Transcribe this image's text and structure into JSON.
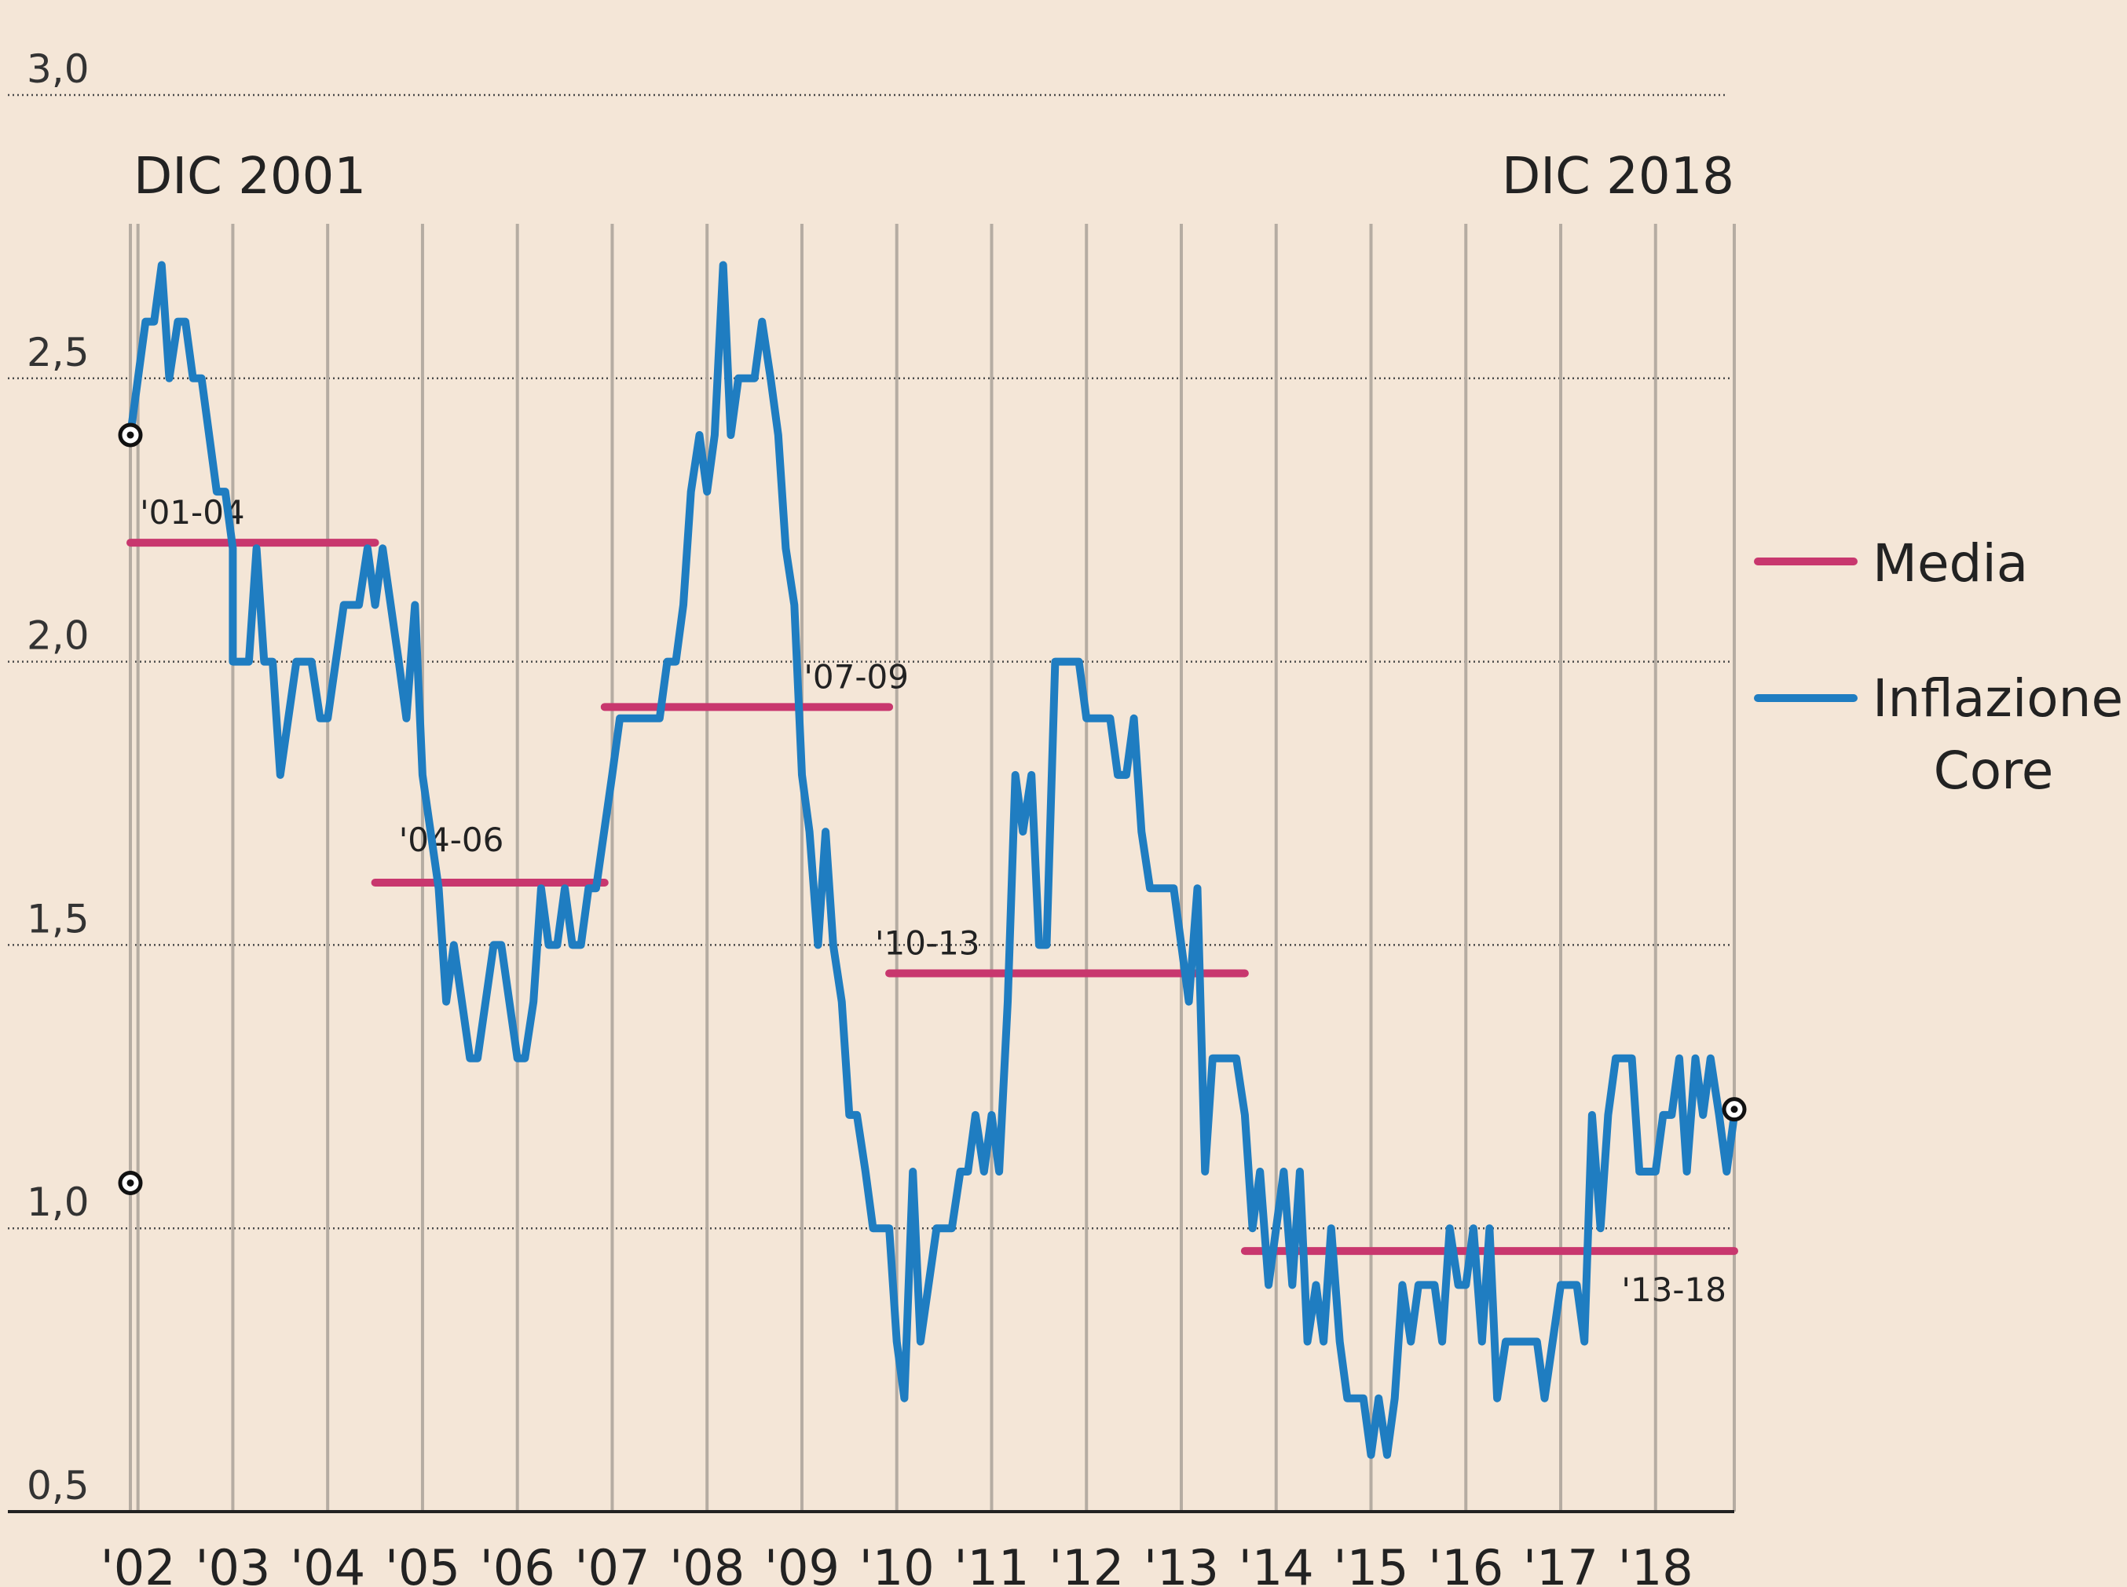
{
  "chart_data": {
    "type": "line",
    "title": "",
    "xlabel": "",
    "ylabel": "",
    "start_label": "DIC 2001",
    "end_label": "DIC 2018",
    "ylim": [
      0.5,
      3.0
    ],
    "ytick_labels": [
      "0,5",
      "1,0",
      "1,5",
      "2,0",
      "2,5",
      "3,0"
    ],
    "yticks": [
      0.5,
      1.0,
      1.5,
      2.0,
      2.5,
      3.0
    ],
    "xtick_labels": [
      "'02",
      "'03",
      "'04",
      "'05",
      "'06",
      "'07",
      "'08",
      "'09",
      "'10",
      "'11",
      "'12",
      "'13",
      "'14",
      "'15",
      "'16",
      "'17",
      "'18"
    ],
    "xticks": [
      2002,
      2003,
      2004,
      2005,
      2006,
      2007,
      2008,
      2009,
      2010,
      2011,
      2012,
      2013,
      2014,
      2015,
      2016,
      2017,
      2018
    ],
    "grid": true,
    "legend_position": "right",
    "series": [
      {
        "name": "Inflazione Core",
        "color": "#1f7dc1",
        "points": [
          [
            2001.92,
            2.4
          ],
          [
            2002.08,
            2.6
          ],
          [
            2002.17,
            2.6
          ],
          [
            2002.25,
            2.7
          ],
          [
            2002.33,
            2.5
          ],
          [
            2002.42,
            2.6
          ],
          [
            2002.5,
            2.6
          ],
          [
            2002.58,
            2.5
          ],
          [
            2002.67,
            2.5
          ],
          [
            2002.83,
            2.3
          ],
          [
            2002.92,
            2.3
          ],
          [
            2003.0,
            2.2
          ],
          [
            2003.0,
            2.0
          ],
          [
            2003.17,
            2.0
          ],
          [
            2003.25,
            2.2
          ],
          [
            2003.33,
            2.0
          ],
          [
            2003.42,
            2.0
          ],
          [
            2003.5,
            1.8
          ],
          [
            2003.67,
            2.0
          ],
          [
            2003.83,
            2.0
          ],
          [
            2003.92,
            1.9
          ],
          [
            2004.0,
            1.9
          ],
          [
            2004.17,
            2.1
          ],
          [
            2004.33,
            2.1
          ],
          [
            2004.42,
            2.2
          ],
          [
            2004.5,
            2.1
          ],
          [
            2004.58,
            2.2
          ],
          [
            2004.75,
            2.0
          ],
          [
            2004.83,
            1.9
          ],
          [
            2004.92,
            2.1
          ],
          [
            2005.0,
            1.8
          ],
          [
            2005.17,
            1.6
          ],
          [
            2005.25,
            1.4
          ],
          [
            2005.33,
            1.5
          ],
          [
            2005.5,
            1.3
          ],
          [
            2005.58,
            1.3
          ],
          [
            2005.75,
            1.5
          ],
          [
            2005.83,
            1.5
          ],
          [
            2006.0,
            1.3
          ],
          [
            2006.08,
            1.3
          ],
          [
            2006.17,
            1.4
          ],
          [
            2006.25,
            1.6
          ],
          [
            2006.33,
            1.5
          ],
          [
            2006.42,
            1.5
          ],
          [
            2006.5,
            1.6
          ],
          [
            2006.58,
            1.5
          ],
          [
            2006.67,
            1.5
          ],
          [
            2006.75,
            1.6
          ],
          [
            2006.83,
            1.6
          ],
          [
            2007.0,
            1.8
          ],
          [
            2007.08,
            1.9
          ],
          [
            2007.25,
            1.9
          ],
          [
            2007.5,
            1.9
          ],
          [
            2007.58,
            2.0
          ],
          [
            2007.67,
            2.0
          ],
          [
            2007.75,
            2.1
          ],
          [
            2007.83,
            2.3
          ],
          [
            2007.92,
            2.4
          ],
          [
            2008.0,
            2.3
          ],
          [
            2008.08,
            2.4
          ],
          [
            2008.17,
            2.7
          ],
          [
            2008.25,
            2.4
          ],
          [
            2008.33,
            2.5
          ],
          [
            2008.5,
            2.5
          ],
          [
            2008.58,
            2.6
          ],
          [
            2008.67,
            2.5
          ],
          [
            2008.75,
            2.4
          ],
          [
            2008.83,
            2.2
          ],
          [
            2008.92,
            2.1
          ],
          [
            2009.0,
            1.8
          ],
          [
            2009.08,
            1.7
          ],
          [
            2009.17,
            1.5
          ],
          [
            2009.25,
            1.7
          ],
          [
            2009.33,
            1.5
          ],
          [
            2009.42,
            1.4
          ],
          [
            2009.5,
            1.2
          ],
          [
            2009.58,
            1.2
          ],
          [
            2009.67,
            1.1
          ],
          [
            2009.75,
            1.0
          ],
          [
            2009.92,
            1.0
          ],
          [
            2010.0,
            0.8
          ],
          [
            2010.08,
            0.7
          ],
          [
            2010.17,
            1.1
          ],
          [
            2010.25,
            0.8
          ],
          [
            2010.42,
            1.0
          ],
          [
            2010.58,
            1.0
          ],
          [
            2010.67,
            1.1
          ],
          [
            2010.75,
            1.1
          ],
          [
            2010.83,
            1.2
          ],
          [
            2010.92,
            1.1
          ],
          [
            2011.0,
            1.2
          ],
          [
            2011.08,
            1.1
          ],
          [
            2011.17,
            1.4
          ],
          [
            2011.25,
            1.8
          ],
          [
            2011.33,
            1.7
          ],
          [
            2011.42,
            1.8
          ],
          [
            2011.5,
            1.5
          ],
          [
            2011.58,
            1.5
          ],
          [
            2011.67,
            2.0
          ],
          [
            2011.92,
            2.0
          ],
          [
            2012.0,
            1.9
          ],
          [
            2012.25,
            1.9
          ],
          [
            2012.33,
            1.8
          ],
          [
            2012.42,
            1.8
          ],
          [
            2012.5,
            1.9
          ],
          [
            2012.58,
            1.7
          ],
          [
            2012.67,
            1.6
          ],
          [
            2012.92,
            1.6
          ],
          [
            2013.0,
            1.5
          ],
          [
            2013.08,
            1.4
          ],
          [
            2013.17,
            1.6
          ],
          [
            2013.25,
            1.1
          ],
          [
            2013.33,
            1.3
          ],
          [
            2013.58,
            1.3
          ],
          [
            2013.67,
            1.2
          ],
          [
            2013.75,
            1.0
          ],
          [
            2013.83,
            1.1
          ],
          [
            2013.92,
            0.9
          ],
          [
            2014.0,
            1.0
          ],
          [
            2014.08,
            1.1
          ],
          [
            2014.17,
            0.9
          ],
          [
            2014.25,
            1.1
          ],
          [
            2014.33,
            0.8
          ],
          [
            2014.42,
            0.9
          ],
          [
            2014.5,
            0.8
          ],
          [
            2014.58,
            1.0
          ],
          [
            2014.67,
            0.8
          ],
          [
            2014.75,
            0.7
          ],
          [
            2014.92,
            0.7
          ],
          [
            2015.0,
            0.6
          ],
          [
            2015.08,
            0.7
          ],
          [
            2015.17,
            0.6
          ],
          [
            2015.25,
            0.7
          ],
          [
            2015.33,
            0.9
          ],
          [
            2015.42,
            0.8
          ],
          [
            2015.5,
            0.9
          ],
          [
            2015.67,
            0.9
          ],
          [
            2015.75,
            0.8
          ],
          [
            2015.83,
            1.0
          ],
          [
            2015.92,
            0.9
          ],
          [
            2016.0,
            0.9
          ],
          [
            2016.08,
            1.0
          ],
          [
            2016.17,
            0.8
          ],
          [
            2016.25,
            1.0
          ],
          [
            2016.33,
            0.7
          ],
          [
            2016.42,
            0.8
          ],
          [
            2016.75,
            0.8
          ],
          [
            2016.83,
            0.7
          ],
          [
            2017.0,
            0.9
          ],
          [
            2017.17,
            0.9
          ],
          [
            2017.25,
            0.8
          ],
          [
            2017.33,
            1.2
          ],
          [
            2017.42,
            1.0
          ],
          [
            2017.5,
            1.2
          ],
          [
            2017.58,
            1.3
          ],
          [
            2017.75,
            1.3
          ],
          [
            2017.83,
            1.1
          ],
          [
            2018.0,
            1.1
          ],
          [
            2018.08,
            1.2
          ],
          [
            2018.17,
            1.2
          ],
          [
            2018.25,
            1.3
          ],
          [
            2018.33,
            1.1
          ],
          [
            2018.42,
            1.3
          ],
          [
            2018.5,
            1.2
          ],
          [
            2018.58,
            1.3
          ],
          [
            2018.67,
            1.2
          ],
          [
            2018.75,
            1.1
          ],
          [
            2018.83,
            1.2
          ]
        ]
      }
    ],
    "averages": {
      "name": "Media",
      "color": "#c8376e",
      "segments": [
        {
          "label": "'01-04",
          "from": 2001.92,
          "to": 2004.5,
          "value": 2.21
        },
        {
          "label": "'04-06",
          "from": 2004.5,
          "to": 2006.92,
          "value": 1.61
        },
        {
          "label": "'07-09",
          "from": 2006.92,
          "to": 2009.92,
          "value": 1.92
        },
        {
          "label": "'10-13",
          "from": 2009.92,
          "to": 2013.67,
          "value": 1.45
        },
        {
          "label": "'13-18",
          "from": 2013.67,
          "to": 2018.83,
          "value": 0.96
        }
      ]
    },
    "reference_points": [
      {
        "x": 2001.92,
        "y": 2.4
      },
      {
        "x": 2001.92,
        "y": 1.08
      },
      {
        "x": 2018.83,
        "y": 1.21
      }
    ]
  },
  "legend": {
    "media_label": "Media",
    "core_label_line1": "Inflazione",
    "core_label_line2": "Core"
  }
}
